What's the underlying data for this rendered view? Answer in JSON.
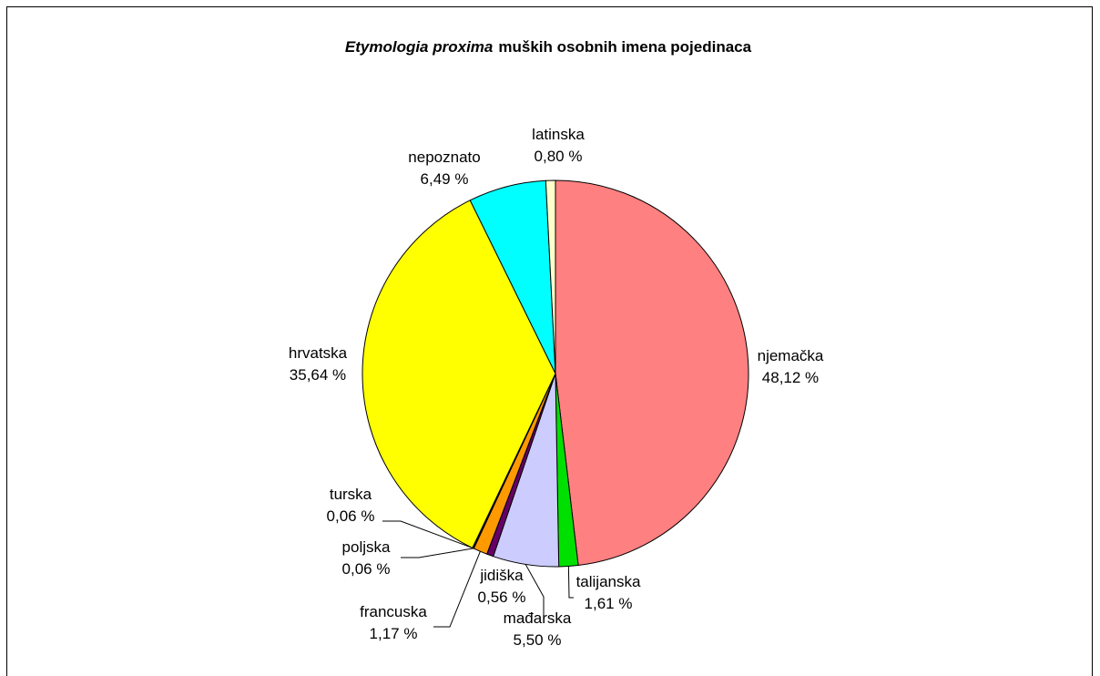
{
  "chart_data": {
    "type": "pie",
    "title": [
      "Etymologia proxima",
      "muških osobnih imena pojedinaca"
    ],
    "categories": [
      "njemačka",
      "talijanska",
      "mađarska",
      "jidiška",
      "francuska",
      "poljska",
      "turska",
      "hrvatska",
      "nepoznato",
      "latinska"
    ],
    "values": [
      48.12,
      1.61,
      5.5,
      0.56,
      1.17,
      0.06,
      0.06,
      35.64,
      6.49,
      0.8
    ],
    "value_labels": [
      "48,12 %",
      "1,61 %",
      "5,50 %",
      "0,56 %",
      "1,17 %",
      "0,06 %",
      "0,06 %",
      "35,64 %",
      "6,49 %",
      "0,80 %"
    ],
    "colors": [
      "#ff8080",
      "#00e000",
      "#ccccff",
      "#660066",
      "#ff9900",
      "#993366",
      "#ffffff",
      "#ffff00",
      "#00ffff",
      "#ffffcc"
    ]
  }
}
